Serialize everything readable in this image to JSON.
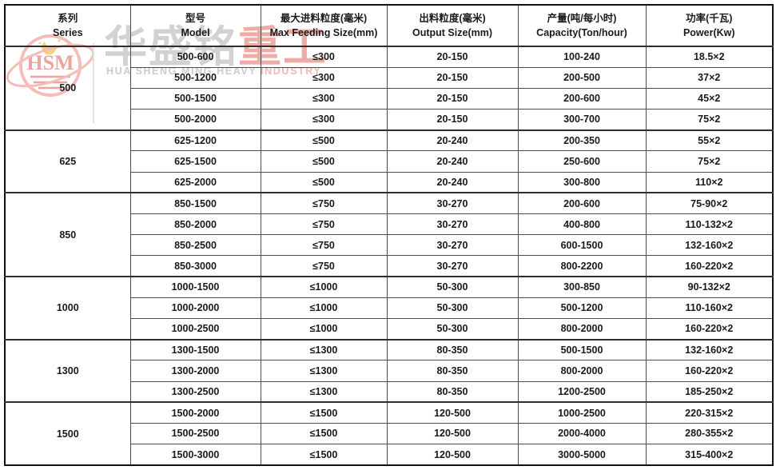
{
  "watermark": {
    "logo_text": "HSM",
    "brand_zh_gray": "华盛铭",
    "brand_zh_red": "重工",
    "subtitle_gray": "HUA SHENG MING HEAVY ",
    "subtitle_red": "INDUSTRY",
    "colors": {
      "gray": "#d2d2d2",
      "red": "#efaca6",
      "logo_ring": "#f3bdb8",
      "crescent": "#f2d27e"
    }
  },
  "table": {
    "columns": [
      {
        "key": "series",
        "zh": "系列",
        "en": "Series"
      },
      {
        "key": "model",
        "zh": "型号",
        "en": "Model"
      },
      {
        "key": "max-feeding-size",
        "zh": "最大进料粒度(毫米)",
        "en": "Max Feeding Size(mm)"
      },
      {
        "key": "output-size",
        "zh": "出料粒度(毫米)",
        "en": "Output Size(mm)"
      },
      {
        "key": "capacity",
        "zh": "产量(吨/每小时)",
        "en": "Capacity(Ton/hour)"
      },
      {
        "key": "power",
        "zh": "功率(千瓦)",
        "en": "Power(Kw)"
      }
    ],
    "groups": [
      {
        "series": "500",
        "rows": [
          [
            "500-600",
            "≤300",
            "20-150",
            "100-240",
            "18.5×2"
          ],
          [
            "500-1200",
            "≤300",
            "20-150",
            "200-500",
            "37×2"
          ],
          [
            "500-1500",
            "≤300",
            "20-150",
            "200-600",
            "45×2"
          ],
          [
            "500-2000",
            "≤300",
            "20-150",
            "300-700",
            "75×2"
          ]
        ]
      },
      {
        "series": "625",
        "rows": [
          [
            "625-1200",
            "≤500",
            "20-240",
            "200-350",
            "55×2"
          ],
          [
            "625-1500",
            "≤500",
            "20-240",
            "250-600",
            "75×2"
          ],
          [
            "625-2000",
            "≤500",
            "20-240",
            "300-800",
            "110×2"
          ]
        ]
      },
      {
        "series": "850",
        "rows": [
          [
            "850-1500",
            "≤750",
            "30-270",
            "200-600",
            "75-90×2"
          ],
          [
            "850-2000",
            "≤750",
            "30-270",
            "400-800",
            "110-132×2"
          ],
          [
            "850-2500",
            "≤750",
            "30-270",
            "600-1500",
            "132-160×2"
          ],
          [
            "850-3000",
            "≤750",
            "30-270",
            "800-2200",
            "160-220×2"
          ]
        ]
      },
      {
        "series": "1000",
        "rows": [
          [
            "1000-1500",
            "≤1000",
            "50-300",
            "300-850",
            "90-132×2"
          ],
          [
            "1000-2000",
            "≤1000",
            "50-300",
            "500-1200",
            "110-160×2"
          ],
          [
            "1000-2500",
            "≤1000",
            "50-300",
            "800-2000",
            "160-220×2"
          ]
        ]
      },
      {
        "series": "1300",
        "rows": [
          [
            "1300-1500",
            "≤1300",
            "80-350",
            "500-1500",
            "132-160×2"
          ],
          [
            "1300-2000",
            "≤1300",
            "80-350",
            "800-2000",
            "160-220×2"
          ],
          [
            "1300-2500",
            "≤1300",
            "80-350",
            "1200-2500",
            "185-250×2"
          ]
        ]
      },
      {
        "series": "1500",
        "rows": [
          [
            "1500-2000",
            "≤1500",
            "120-500",
            "1000-2500",
            "220-315×2"
          ],
          [
            "1500-2500",
            "≤1500",
            "120-500",
            "2000-4000",
            "280-355×2"
          ],
          [
            "1500-3000",
            "≤1500",
            "120-500",
            "3000-5000",
            "315-400×2"
          ]
        ]
      }
    ]
  }
}
